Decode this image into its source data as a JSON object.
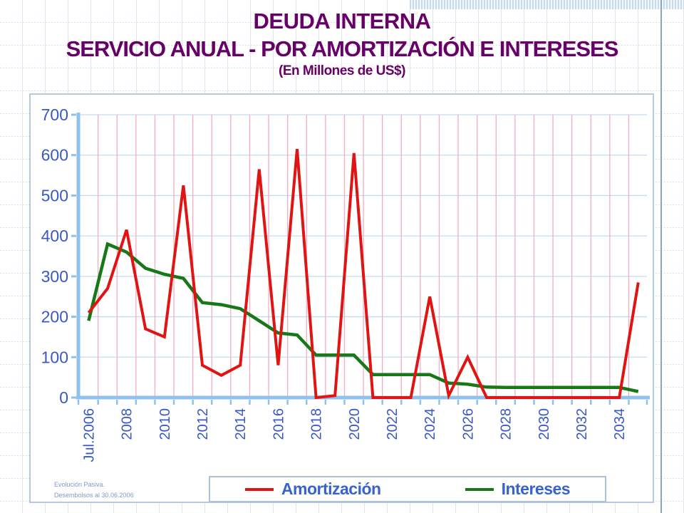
{
  "slide": {
    "title_line1": "DEUDA INTERNA",
    "title_line2": "SERVICIO ANUAL - POR AMORTIZACIÓN E INTERESES",
    "title_line3": "(En Millones de US$)",
    "footnote_line1": "Evolución Pasiva.",
    "footnote_line2": "Desembolsos al 30.06.2006"
  },
  "colors": {
    "title_text": "#670067",
    "tick_text": "#3a58c4",
    "legend_text": "#3863cc",
    "footnote_text": "#8795c9",
    "axis": "#8ec2ec",
    "grid_h": "#c3dbf2",
    "grid_v": "#f3aec2",
    "amortizacion_red": "#e11414",
    "intereses_green": "#167816",
    "accent_line": "#8ba6c4",
    "bg_grid_vertical": "#e2e4f4",
    "bg_grid_dotted": "#d0d4ec"
  },
  "chart_data": {
    "type": "line",
    "title": "DEUDA INTERNA - SERVICIO ANUAL - POR AMORTIZACIÓN E INTERESES (En Millones de US$)",
    "xlabel": "",
    "ylabel": "",
    "ylim": [
      0,
      700
    ],
    "y_ticks": [
      0,
      100,
      200,
      300,
      400,
      500,
      600,
      700
    ],
    "grid": "on",
    "legend_position": "bottom",
    "categories": [
      "Jul.2006",
      "2007",
      "2008",
      "2009",
      "2010",
      "2011",
      "2012",
      "2013",
      "2014",
      "2015",
      "2016",
      "2017",
      "2018",
      "2019",
      "2020",
      "2021",
      "2022",
      "2023",
      "2024",
      "2025",
      "2026",
      "2027",
      "2028",
      "2029",
      "2030",
      "2031",
      "2032",
      "2033",
      "2034",
      "2035"
    ],
    "x_tick_labels": [
      "Jul.2006",
      "2008",
      "2010",
      "2012",
      "2014",
      "2016",
      "2018",
      "2020",
      "2022",
      "2024",
      "2026",
      "2028",
      "2030",
      "2032",
      "2034"
    ],
    "series": [
      {
        "name": "Amortización",
        "color": "#e11414",
        "values": [
          210,
          270,
          415,
          170,
          150,
          525,
          80,
          55,
          80,
          565,
          80,
          615,
          0,
          5,
          605,
          0,
          0,
          0,
          250,
          5,
          100,
          0,
          0,
          0,
          0,
          0,
          0,
          0,
          0,
          285
        ]
      },
      {
        "name": "Intereses",
        "color": "#167816",
        "values": [
          190,
          380,
          360,
          320,
          305,
          295,
          235,
          230,
          220,
          190,
          160,
          155,
          105,
          105,
          105,
          57,
          57,
          57,
          57,
          36,
          33,
          26,
          25,
          25,
          25,
          25,
          25,
          25,
          25,
          15
        ]
      }
    ]
  }
}
